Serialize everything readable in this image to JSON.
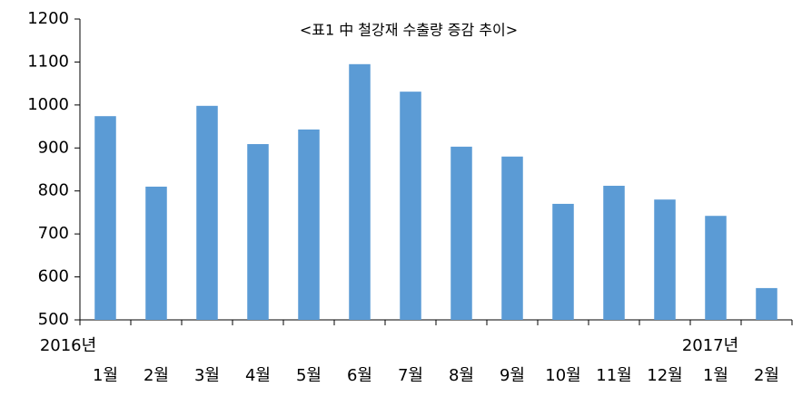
{
  "chart_data": {
    "type": "bar",
    "title": "<표1 中 철강재 수출량 증감 추이>",
    "categories": [
      "1월",
      "2월",
      "3월",
      "4월",
      "5월",
      "6월",
      "7월",
      "8월",
      "9월",
      "10월",
      "11월",
      "12월",
      "1월",
      "2월"
    ],
    "values": [
      974,
      810,
      998,
      909,
      943,
      1095,
      1031,
      903,
      880,
      770,
      812,
      780,
      742,
      574
    ],
    "year_labels": [
      "2016년",
      "2017년"
    ],
    "color": "#5b9bd5",
    "ylim": [
      500,
      1200
    ],
    "yticks": [
      500,
      600,
      700,
      800,
      900,
      1000,
      1100,
      1200
    ],
    "grid": false
  }
}
